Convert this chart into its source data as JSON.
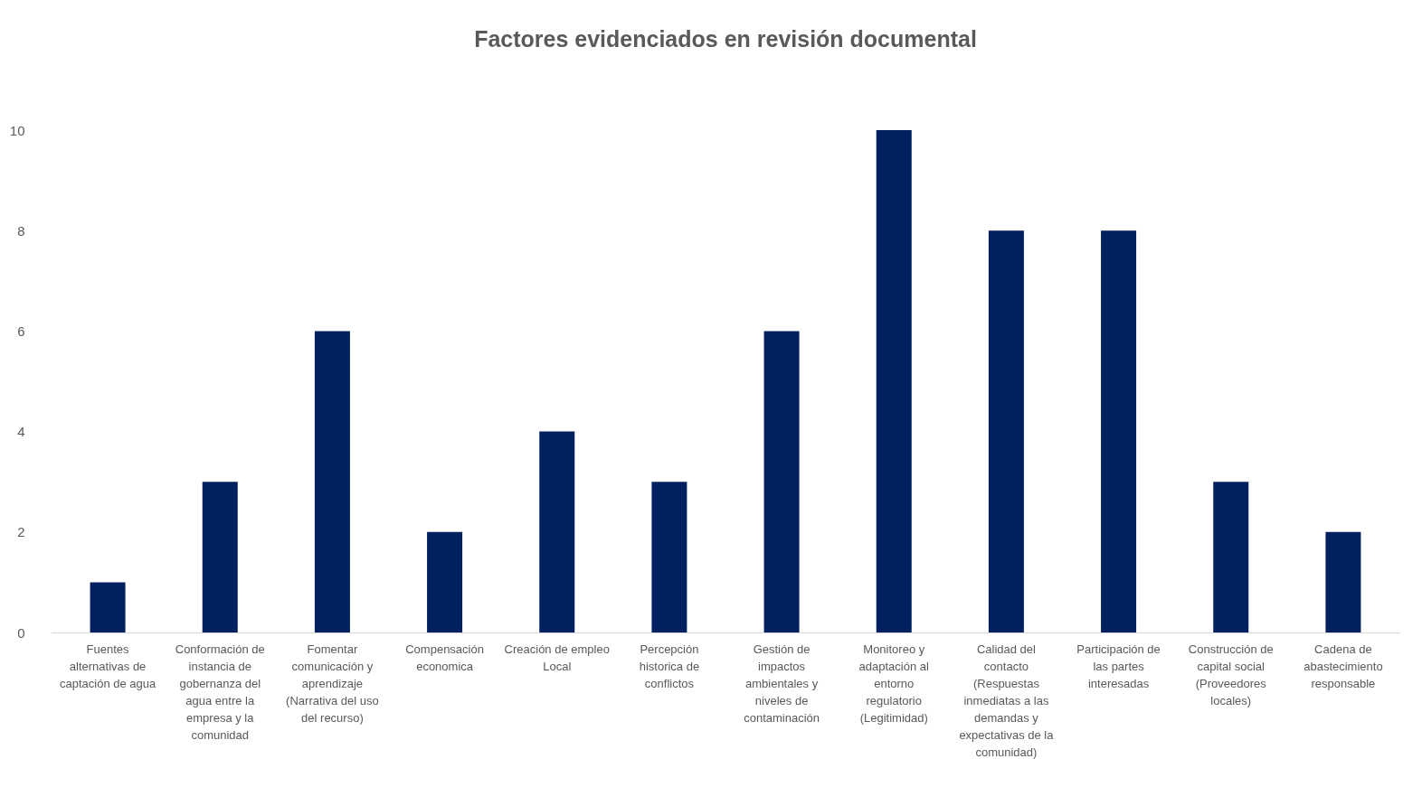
{
  "chart_data": {
    "type": "bar",
    "title": "Factores evidenciados en revisión documental",
    "categories": [
      "Fuentes alternativas de captación de agua",
      "Conformación de instancia de gobernanza del agua entre la empresa y la comunidad",
      "Fomentar comunicación y aprendizaje (Narrativa del uso del recurso)",
      "Compensación economica",
      "Creación de empleo Local",
      "Percepción historica de conflictos",
      "Gestión de impactos ambientales y niveles de contaminación",
      "Monitoreo y adaptación al entorno regulatorio (Legitimidad)",
      "Calidad del contacto (Respuestas inmediatas a las demandas y expectativas de la comunidad)",
      "Participación de las partes interesadas",
      "Construcción de capital social (Proveedores locales)",
      "Cadena de abastecimiento responsable"
    ],
    "values": [
      1,
      3,
      6,
      2,
      4,
      3,
      6,
      10,
      8,
      8,
      3,
      2
    ],
    "color": "#002060",
    "ylim": [
      0,
      10
    ],
    "yticks": [
      0,
      2,
      4,
      6,
      8,
      10
    ],
    "grid": false
  }
}
